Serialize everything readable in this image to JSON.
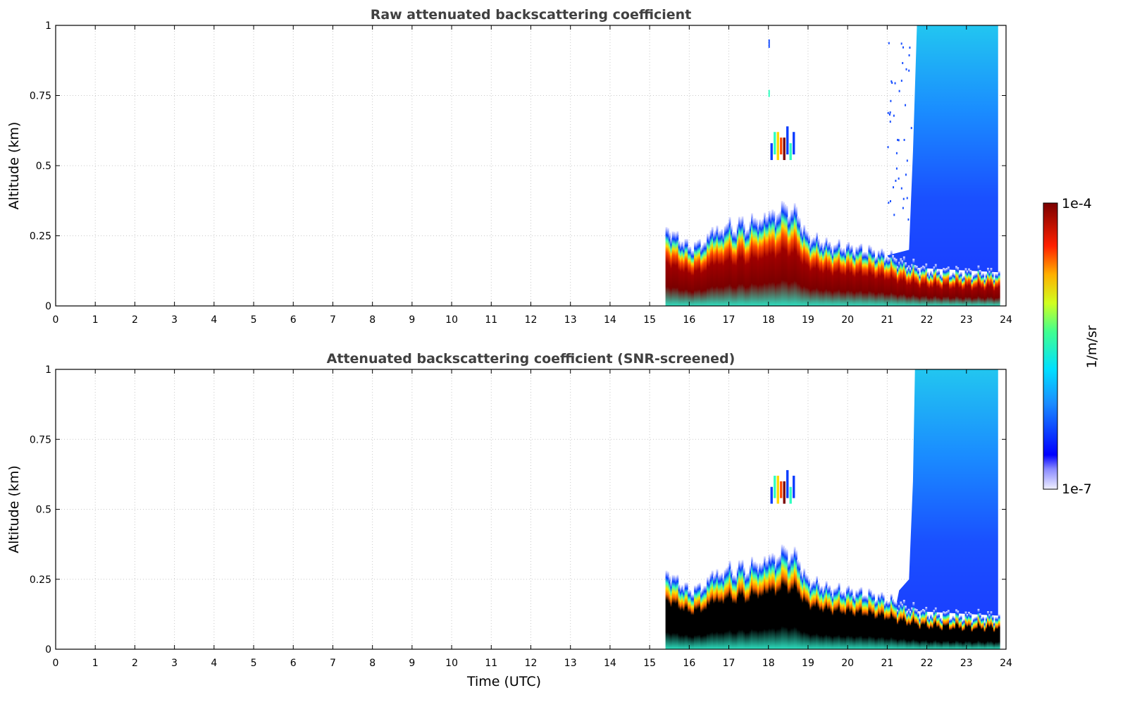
{
  "chart_data": [
    {
      "type": "heatmap",
      "title": "Raw attenuated backscattering coefficient",
      "xlabel": "",
      "ylabel": "Altitude (km)",
      "xlim": [
        0,
        24
      ],
      "ylim": [
        0,
        1
      ],
      "xticks": [
        "0",
        "1",
        "2",
        "3",
        "4",
        "5",
        "6",
        "7",
        "8",
        "9",
        "10",
        "11",
        "12",
        "13",
        "14",
        "15",
        "16",
        "17",
        "18",
        "19",
        "20",
        "21",
        "22",
        "23",
        "24"
      ],
      "yticks": [
        "0",
        "0.25",
        "0.5",
        "0.75",
        "1"
      ],
      "grid": true,
      "data_start_time": 15.4,
      "data_end_time": 23.8,
      "layer_top_km": [
        [
          15.4,
          0.28
        ],
        [
          16.0,
          0.21
        ],
        [
          16.5,
          0.24
        ],
        [
          17.0,
          0.26
        ],
        [
          17.5,
          0.27
        ],
        [
          18.0,
          0.3
        ],
        [
          18.5,
          0.33
        ],
        [
          19.0,
          0.25
        ],
        [
          19.5,
          0.22
        ],
        [
          20.0,
          0.21
        ],
        [
          20.5,
          0.2
        ],
        [
          21.0,
          0.18
        ],
        [
          21.5,
          0.15
        ],
        [
          22.0,
          0.13
        ],
        [
          23.0,
          0.12
        ],
        [
          23.8,
          0.12
        ]
      ],
      "high_aerosol_from": 21.6
    },
    {
      "type": "heatmap",
      "title": "Attenuated backscattering coefficient (SNR-screened)",
      "xlabel": "Time (UTC)",
      "ylabel": "Altitude (km)",
      "xlim": [
        0,
        24
      ],
      "ylim": [
        0,
        1
      ],
      "xticks": [
        "0",
        "1",
        "2",
        "3",
        "4",
        "5",
        "6",
        "7",
        "8",
        "9",
        "10",
        "11",
        "12",
        "13",
        "14",
        "15",
        "16",
        "17",
        "18",
        "19",
        "20",
        "21",
        "22",
        "23",
        "24"
      ],
      "yticks": [
        "0",
        "0.25",
        "0.5",
        "0.75",
        "1"
      ],
      "grid": true,
      "data_start_time": 15.4,
      "data_end_time": 23.8
    }
  ],
  "colorbar": {
    "label": "1/m/sr",
    "max_label": "1e-4",
    "min_label": "1e-7",
    "colormap": "jet",
    "scale": "log"
  }
}
